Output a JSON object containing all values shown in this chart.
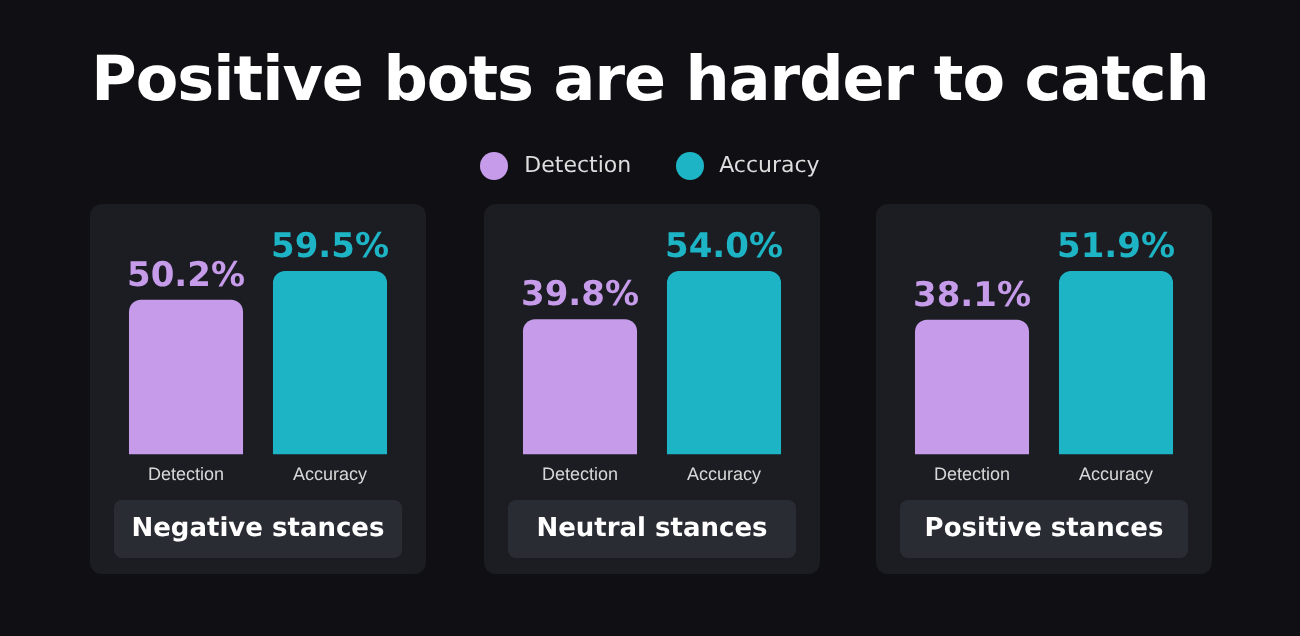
{
  "chart_data": [
    {
      "type": "bar",
      "title": "Positive bots are harder to catch",
      "categories": [
        "Detection",
        "Accuracy"
      ],
      "values": [
        50.2,
        59.5
      ],
      "colors": [
        "#c59bea",
        "#1db5c5"
      ],
      "value_labels": [
        "50.2%",
        "59.5%"
      ],
      "xlabel": "Negative stances",
      "grid": false
    },
    {
      "type": "bar",
      "categories": [
        "Detection",
        "Accuracy"
      ],
      "values": [
        39.8,
        54.0
      ],
      "colors": [
        "#c59bea",
        "#1db5c5"
      ],
      "value_labels": [
        "39.8%",
        "54.0%"
      ],
      "xlabel": "Neutral stances",
      "grid": false
    },
    {
      "type": "bar",
      "categories": [
        "Detection",
        "Accuracy"
      ],
      "values": [
        38.1,
        51.9
      ],
      "colors": [
        "#c59bea",
        "#1db5c5"
      ],
      "value_labels": [
        "38.1%",
        "51.9%"
      ],
      "xlabel": "Positive stances",
      "grid": false
    }
  ]
}
